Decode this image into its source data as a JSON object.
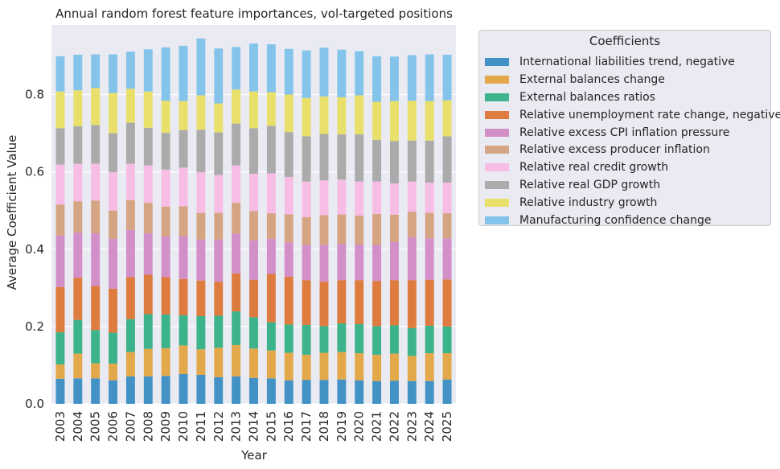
{
  "chart_data": {
    "type": "bar",
    "stacked": true,
    "title": "Annual random forest feature importances, vol-targeted positions",
    "xlabel": "Year",
    "ylabel": "Average Coefficient Value",
    "ylim": [
      0,
      0.98
    ],
    "yticks": [
      0.0,
      0.2,
      0.4,
      0.6,
      0.8
    ],
    "ytick_labels": [
      "0.0",
      "0.2",
      "0.4",
      "0.6",
      "0.8"
    ],
    "legend_title": "Coefficients",
    "legend_position": "outside-right-top",
    "grid": true,
    "categories": [
      "2003",
      "2004",
      "2005",
      "2006",
      "2007",
      "2008",
      "2009",
      "2010",
      "2011",
      "2012",
      "2013",
      "2014",
      "2015",
      "2016",
      "2017",
      "2018",
      "2019",
      "2020",
      "2021",
      "2022",
      "2023",
      "2024",
      "2025"
    ],
    "series": [
      {
        "name": "International liabilities trend, negative",
        "color": "#4292c6",
        "values": [
          0.065,
          0.066,
          0.066,
          0.061,
          0.071,
          0.071,
          0.072,
          0.077,
          0.075,
          0.069,
          0.071,
          0.067,
          0.066,
          0.061,
          0.062,
          0.062,
          0.063,
          0.061,
          0.059,
          0.06,
          0.059,
          0.059,
          0.063
        ]
      },
      {
        "name": "External balances change",
        "color": "#e3a84a",
        "values": [
          0.037,
          0.064,
          0.039,
          0.043,
          0.063,
          0.071,
          0.072,
          0.074,
          0.066,
          0.076,
          0.081,
          0.076,
          0.072,
          0.071,
          0.065,
          0.07,
          0.071,
          0.07,
          0.068,
          0.07,
          0.065,
          0.072,
          0.068
        ]
      },
      {
        "name": "External balances ratios",
        "color": "#3db38b",
        "values": [
          0.083,
          0.087,
          0.086,
          0.08,
          0.085,
          0.09,
          0.087,
          0.078,
          0.086,
          0.083,
          0.087,
          0.081,
          0.073,
          0.073,
          0.077,
          0.069,
          0.074,
          0.075,
          0.074,
          0.073,
          0.072,
          0.071,
          0.069
        ]
      },
      {
        "name": "Relative unemployment rate change, negative",
        "color": "#de7b3f",
        "values": [
          0.117,
          0.109,
          0.114,
          0.114,
          0.109,
          0.102,
          0.097,
          0.094,
          0.092,
          0.088,
          0.098,
          0.097,
          0.125,
          0.124,
          0.116,
          0.115,
          0.112,
          0.114,
          0.117,
          0.117,
          0.124,
          0.119,
          0.122
        ]
      },
      {
        "name": "Relative excess CPI inflation pressure",
        "color": "#d28fc8",
        "values": [
          0.133,
          0.117,
          0.136,
          0.129,
          0.122,
          0.107,
          0.105,
          0.111,
          0.106,
          0.109,
          0.103,
          0.102,
          0.091,
          0.089,
          0.091,
          0.095,
          0.094,
          0.092,
          0.093,
          0.099,
          0.111,
          0.107,
          0.106
        ]
      },
      {
        "name": "Relative excess producer inflation",
        "color": "#d5a583",
        "values": [
          0.08,
          0.081,
          0.085,
          0.073,
          0.077,
          0.079,
          0.077,
          0.077,
          0.069,
          0.069,
          0.08,
          0.076,
          0.066,
          0.072,
          0.072,
          0.077,
          0.076,
          0.075,
          0.08,
          0.07,
          0.066,
          0.066,
          0.065
        ]
      },
      {
        "name": "Relative real credit growth",
        "color": "#f7bde5",
        "values": [
          0.104,
          0.097,
          0.095,
          0.099,
          0.094,
          0.097,
          0.096,
          0.1,
          0.105,
          0.098,
          0.097,
          0.096,
          0.103,
          0.097,
          0.092,
          0.09,
          0.09,
          0.088,
          0.084,
          0.081,
          0.078,
          0.078,
          0.079
        ]
      },
      {
        "name": "Relative real GDP growth",
        "color": "#ababab",
        "values": [
          0.094,
          0.097,
          0.1,
          0.101,
          0.106,
          0.097,
          0.095,
          0.097,
          0.11,
          0.11,
          0.108,
          0.118,
          0.123,
          0.116,
          0.117,
          0.12,
          0.117,
          0.122,
          0.108,
          0.11,
          0.106,
          0.109,
          0.12
        ]
      },
      {
        "name": "Relative industry growth",
        "color": "#e8e06a",
        "values": [
          0.095,
          0.093,
          0.096,
          0.104,
          0.088,
          0.094,
          0.083,
          0.075,
          0.089,
          0.075,
          0.088,
          0.095,
          0.087,
          0.097,
          0.099,
          0.097,
          0.096,
          0.101,
          0.098,
          0.103,
          0.103,
          0.102,
          0.093
        ]
      },
      {
        "name": "Manufacturing confidence change",
        "color": "#85c4ea",
        "values": [
          0.091,
          0.092,
          0.087,
          0.1,
          0.096,
          0.109,
          0.138,
          0.143,
          0.147,
          0.142,
          0.11,
          0.124,
          0.124,
          0.118,
          0.123,
          0.126,
          0.123,
          0.114,
          0.118,
          0.115,
          0.118,
          0.121,
          0.118
        ]
      }
    ]
  }
}
